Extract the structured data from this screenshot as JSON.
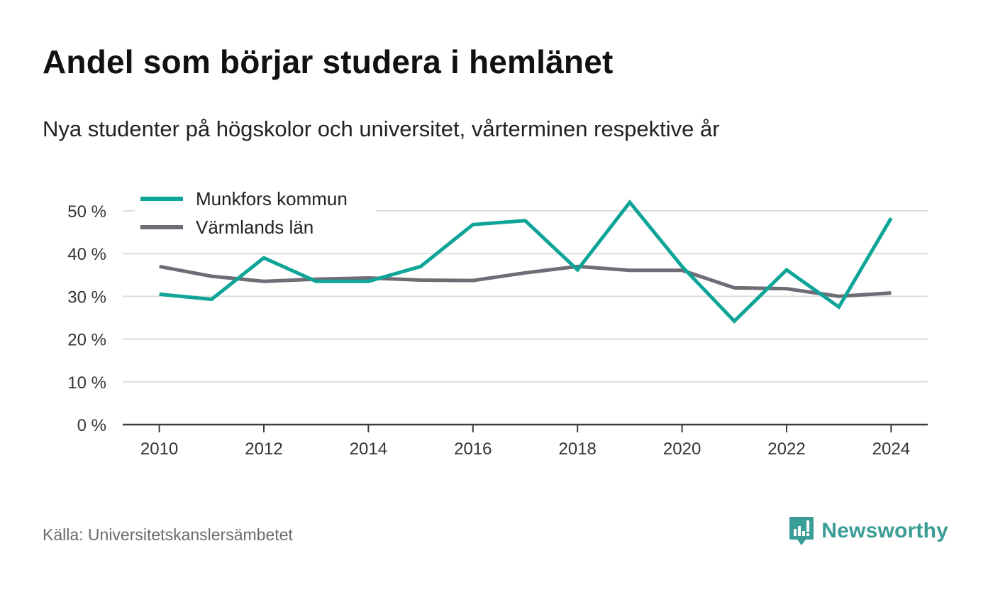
{
  "title": "Andel som börjar studera i hemlänet",
  "subtitle": "Nya studenter på högskolor och universitet, vårterminen respektive år",
  "source": "Källa: Universitetskanslersämbetet",
  "brand": {
    "name": "Newsworthy",
    "color": "#3a9d96",
    "icon": "newsworthy-logo-icon"
  },
  "chart_data": {
    "type": "line",
    "x": [
      2010,
      2011,
      2012,
      2013,
      2014,
      2015,
      2016,
      2017,
      2018,
      2019,
      2020,
      2021,
      2022,
      2023,
      2024
    ],
    "xticks": [
      2010,
      2012,
      2014,
      2016,
      2018,
      2020,
      2022,
      2024
    ],
    "yticks": [
      0,
      10,
      20,
      30,
      40,
      50
    ],
    "ytick_labels": [
      "0 %",
      "10 %",
      "20 %",
      "30 %",
      "40 %",
      "50 %"
    ],
    "ylim": [
      0,
      50
    ],
    "xlim": [
      2009.3,
      2024.7
    ],
    "grid": true,
    "legend_position": "top-left",
    "series": [
      {
        "name": "Munkfors kommun",
        "color": "#0ea598",
        "values": [
          30.5,
          29.3,
          39,
          33.5,
          33.5,
          37,
          46.8,
          47.7,
          36.2,
          52,
          37,
          24.2,
          36.2,
          27.5,
          48.3
        ]
      },
      {
        "name": "Värmlands län",
        "color": "#6e6d75",
        "values": [
          37,
          34.7,
          33.5,
          34,
          34.3,
          33.8,
          33.7,
          35.5,
          37,
          36.1,
          36.1,
          32,
          31.8,
          30,
          30.8
        ]
      }
    ],
    "colors": {
      "grid": "#dcdcdc",
      "axis": "#3b3b3b",
      "tick_label": "#333333"
    }
  }
}
